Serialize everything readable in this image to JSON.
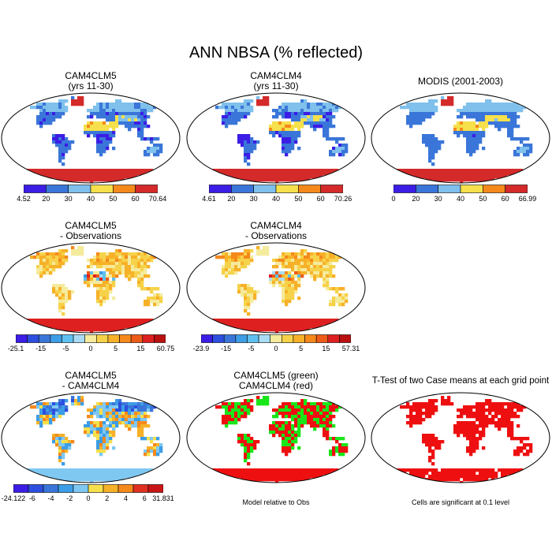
{
  "title": "ANN NBSA (% reflected)",
  "colors": {
    "seq6": [
      "#3b1de6",
      "#3a76d9",
      "#7fc0ec",
      "#f6e04b",
      "#f58a1c",
      "#d42a2a"
    ],
    "div14": [
      "#3b1de6",
      "#2c4fe0",
      "#3a76d9",
      "#3d9de6",
      "#5ec0f0",
      "#a9dcf4",
      "#f5eb9d",
      "#f6d24a",
      "#f7b128",
      "#f5891c",
      "#ee5b18",
      "#de2020",
      "#b91010"
    ],
    "div10": [
      "#3b1de6",
      "#2c4fe0",
      "#3a76d9",
      "#3d9de6",
      "#7fc8f2",
      "#f6e04b",
      "#f7b128",
      "#f5891c",
      "#e03020",
      "#c91515"
    ],
    "green": "#19e619",
    "red": "#ee1010"
  },
  "panels": [
    {
      "id": "p1",
      "title": [
        "CAM4CLM5",
        "(yrs 11-30)"
      ],
      "colorbar": {
        "ticks": [
          "4.52",
          "20",
          "30",
          "40",
          "50",
          "60",
          "70.64"
        ],
        "palette": "seq6"
      }
    },
    {
      "id": "p2",
      "title": [
        "CAM4CLM4",
        "(yrs 11-30)"
      ],
      "colorbar": {
        "ticks": [
          "4.61",
          "20",
          "30",
          "40",
          "50",
          "60",
          "70.26"
        ],
        "palette": "seq6"
      }
    },
    {
      "id": "p3",
      "title": [
        "MODIS (2001-2003)"
      ],
      "colorbar": {
        "ticks": [
          "0",
          "20",
          "30",
          "40",
          "50",
          "60",
          "66.99"
        ],
        "palette": "seq6"
      }
    },
    {
      "id": "p4",
      "title": [
        "CAM4CLM5",
        "- Observations"
      ],
      "colorbar": {
        "ticks": [
          "-25.1",
          "-15",
          "-5",
          "0",
          "5",
          "15",
          "60.75"
        ],
        "palette": "div14"
      }
    },
    {
      "id": "p5",
      "title": [
        "CAM4CLM4",
        "- Observations"
      ],
      "colorbar": {
        "ticks": [
          "-23.9",
          "-15",
          "-5",
          "0",
          "5",
          "15",
          "57.31"
        ],
        "palette": "div14"
      }
    },
    {
      "id": "p6",
      "title": [
        "CAM4CLM5",
        "- CAM4CLM4"
      ],
      "colorbar": {
        "ticks": [
          "-24.122",
          "-6",
          "-4",
          "-2",
          "0",
          "2",
          "4",
          "6",
          "31.831"
        ],
        "palette": "div10"
      }
    },
    {
      "id": "p7",
      "title": [
        "CAM4CLM5 (green)",
        "CAM4CLM4 (red)"
      ],
      "note": "Model relative to Obs"
    },
    {
      "id": "p8",
      "title": [
        "T-Test of two Case means at each grid point"
      ],
      "note": "Cells are significant at 0.1 level"
    }
  ],
  "chart_data": [
    {
      "type": "heatmap",
      "title": "CAM4CLM5 (yrs 11-30)",
      "variable": "ANN NBSA (% reflected)",
      "colorbar_ticks": [
        4.52,
        20,
        30,
        40,
        50,
        60,
        70.64
      ],
      "range": [
        4.52,
        70.64
      ]
    },
    {
      "type": "heatmap",
      "title": "CAM4CLM4 (yrs 11-30)",
      "variable": "ANN NBSA (% reflected)",
      "colorbar_ticks": [
        4.61,
        20,
        30,
        40,
        50,
        60,
        70.26
      ],
      "range": [
        4.61,
        70.26
      ]
    },
    {
      "type": "heatmap",
      "title": "MODIS (2001-2003)",
      "variable": "ANN NBSA (% reflected)",
      "colorbar_ticks": [
        0,
        20,
        30,
        40,
        50,
        60,
        66.99
      ],
      "range": [
        0,
        66.99
      ]
    },
    {
      "type": "heatmap",
      "title": "CAM4CLM5 - Observations",
      "colorbar_ticks": [
        -25.1,
        -15,
        -5,
        0,
        5,
        15,
        60.75
      ],
      "range": [
        -25.1,
        60.75
      ]
    },
    {
      "type": "heatmap",
      "title": "CAM4CLM4 - Observations",
      "colorbar_ticks": [
        -23.9,
        -15,
        -5,
        0,
        5,
        15,
        57.31
      ],
      "range": [
        -23.9,
        57.31
      ]
    },
    {
      "type": "heatmap",
      "title": "CAM4CLM5 - CAM4CLM4",
      "colorbar_ticks": [
        -24.122,
        -6,
        -4,
        -2,
        0,
        2,
        4,
        6,
        31.831
      ],
      "range": [
        -24.122,
        31.831
      ]
    },
    {
      "type": "heatmap",
      "title": "CAM4CLM5 (green) CAM4CLM4 (red)",
      "note": "Model relative to Obs",
      "series": [
        {
          "name": "CAM4CLM5",
          "color": "green"
        },
        {
          "name": "CAM4CLM4",
          "color": "red"
        }
      ]
    },
    {
      "type": "heatmap",
      "title": "T-Test of two Case means at each grid point",
      "note": "Cells are significant at 0.1 level"
    }
  ]
}
